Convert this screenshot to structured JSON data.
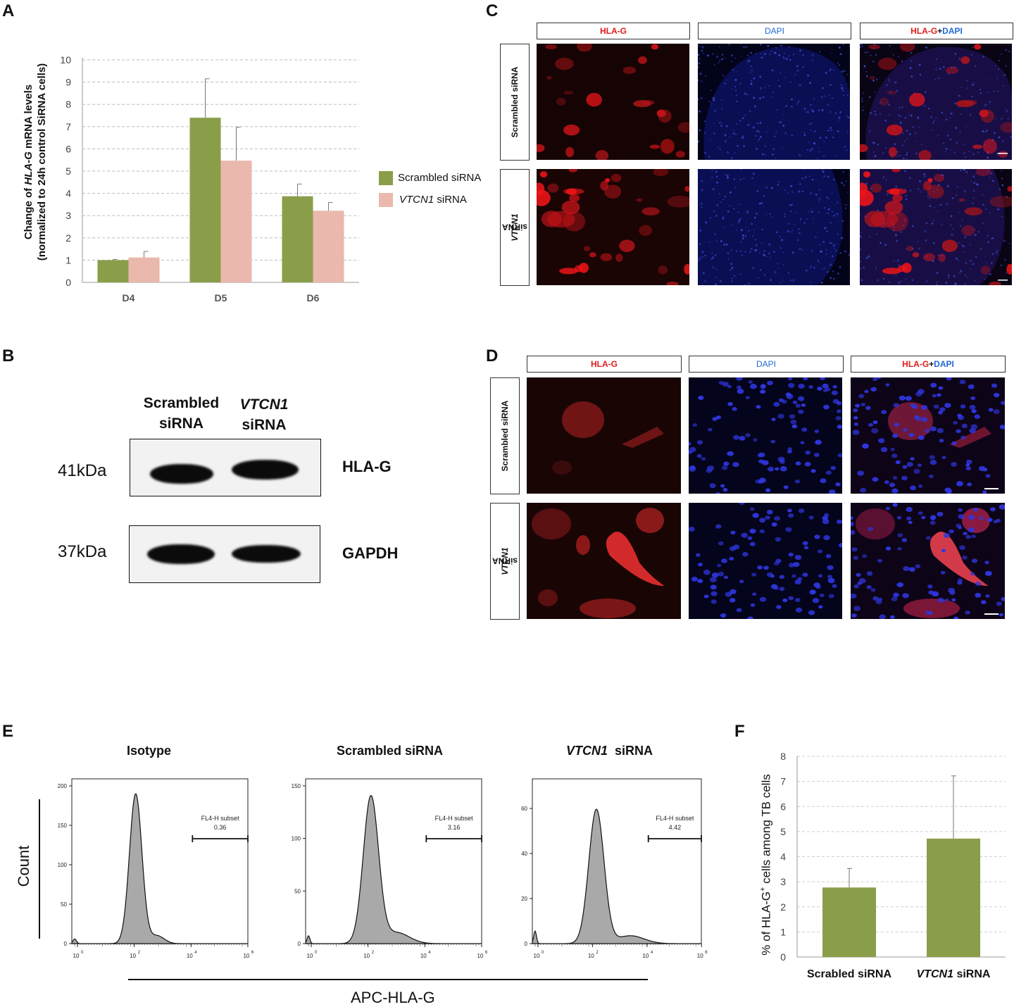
{
  "panels": {
    "a": "A",
    "b": "B",
    "c": "C",
    "d": "D",
    "e": "E",
    "f": "F"
  },
  "panel_a": {
    "ylabel_line1_pre": "Change of ",
    "ylabel_line1_ital": "HLA-G",
    "ylabel_line1_post": " mRNA levels",
    "ylabel_line2": "(normalized to 24h control SiRNA cells)",
    "legend": {
      "scrambled": "Scrambled siRNA",
      "vtcn1_ital": "VTCN1",
      "vtcn1_rest": " siRNA"
    },
    "colors": {
      "scrambled": "#8a9e4a",
      "vtcn1": "#eab8ad"
    }
  },
  "panel_b": {
    "col1_line1": "Scrambled",
    "col1_line2": "siRNA",
    "col2_line1": "VTCN1",
    "col2_line2": "siRNA",
    "row1_mw": "41kDa",
    "row1_label": "HLA-G",
    "row2_mw": "37kDa",
    "row2_label": "GAPDH"
  },
  "panel_c": {
    "h1": "HLA-G",
    "h2": "DAPI",
    "h3a": "HLA-G",
    "h3b": "+",
    "h3c": "DAPI",
    "r1": "Scrambled siRNA",
    "r2_ital": "VTCN1",
    "r2_rest": " siRNA"
  },
  "panel_d": {
    "h1": "HLA-G",
    "h2": "DAPI",
    "h3a": "HLA-G",
    "h3b": "+",
    "h3c": "DAPI",
    "r1": "Scrambled siRNA",
    "r2_ital": "VTCN1",
    "r2_rest": " siRNA"
  },
  "panel_e": {
    "t1": "Isotype",
    "t2": "Scrambled siRNA",
    "t3_ital": "VTCN1",
    "t3_rest": "  siRNA",
    "ylabel": "Count",
    "xlabel": "APC-HLA-G",
    "gate_label": "FL4-H subset",
    "gate1": "0.36",
    "gate2": "3.16",
    "gate3": "4.42",
    "ticks1": [
      "200",
      "150",
      "100",
      "50",
      "0"
    ],
    "ticks2": [
      "150",
      "100",
      "50",
      "0"
    ],
    "ticks3": [
      "60",
      "40",
      "20",
      "0"
    ],
    "xticks": [
      "10",
      "10",
      "10",
      "10"
    ],
    "xexp": [
      "0",
      "2",
      "4",
      "6"
    ]
  },
  "chart_data": [
    {
      "type": "bar",
      "categories": [
        "D4",
        "D5",
        "D6"
      ],
      "series": [
        {
          "name": "Scrambled siRNA",
          "values": [
            1.0,
            7.4,
            3.87
          ],
          "errors": [
            0.03,
            1.75,
            0.55
          ]
        },
        {
          "name": "VTCN1 siRNA",
          "values": [
            1.12,
            5.47,
            3.22
          ],
          "errors": [
            0.27,
            1.5,
            0.37
          ]
        }
      ],
      "ylim": [
        0,
        10
      ],
      "yticks": [
        "0",
        "1",
        "2",
        "3",
        "4",
        "5",
        "6",
        "7",
        "8",
        "9",
        "10"
      ],
      "grid": true,
      "legend": "right"
    },
    {
      "type": "bar",
      "categories": [
        "Scrabled siRNA",
        "VTCN1 siRNA"
      ],
      "series": [
        {
          "values": [
            2.77,
            4.72
          ],
          "errors": [
            0.76,
            2.5
          ]
        }
      ],
      "ylim": [
        0,
        8
      ],
      "yticks": [
        "0",
        "1",
        "2",
        "3",
        "4",
        "5",
        "6",
        "7",
        "8"
      ],
      "ylabel_pre": "% of HLA-G",
      "ylabel_sup": "+",
      "ylabel_post": " cells among TB cells",
      "grid": true,
      "color": "#8a9e4a"
    }
  ]
}
